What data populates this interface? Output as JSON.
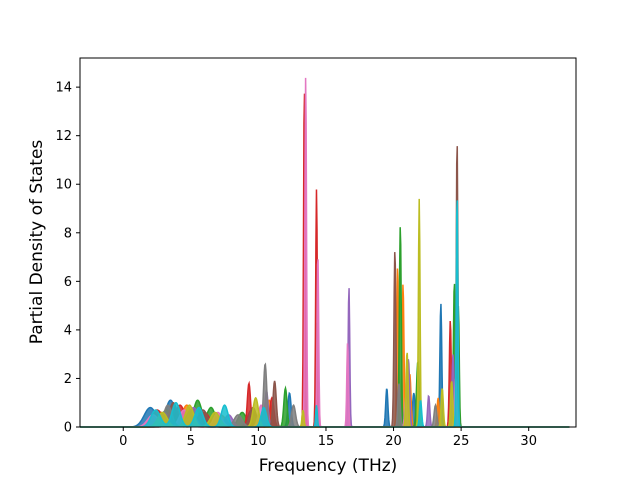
{
  "chart_data": {
    "type": "area",
    "title": "",
    "xlabel": "Frequency (THz)",
    "ylabel": "Partial Density of States",
    "xlim": [
      -3.2,
      33.5
    ],
    "ylim": [
      0,
      15.2
    ],
    "xticks": [
      0,
      5,
      10,
      15,
      20,
      25,
      30
    ],
    "yticks": [
      0,
      2,
      4,
      6,
      8,
      10,
      12,
      14
    ],
    "grid": false,
    "legend": "none",
    "x_range_plotted": [
      -3.2,
      33.0
    ],
    "series": [
      {
        "color": "#1f77b4",
        "peaks": [
          [
            2.0,
            0.8,
            0.45
          ],
          [
            3.5,
            1.1,
            0.35
          ],
          [
            5.8,
            0.6,
            0.4
          ],
          [
            9.5,
            0.7,
            0.3
          ],
          [
            12.3,
            1.4,
            0.12
          ],
          [
            13.4,
            1.5,
            0.08
          ],
          [
            19.5,
            1.6,
            0.08
          ],
          [
            21.5,
            1.4,
            0.1
          ],
          [
            23.5,
            5.1,
            0.07
          ],
          [
            24.6,
            3.2,
            0.08
          ]
        ]
      },
      {
        "color": "#ff7f0e",
        "peaks": [
          [
            2.8,
            0.6,
            0.4
          ],
          [
            4.7,
            0.9,
            0.35
          ],
          [
            7.2,
            0.5,
            0.4
          ],
          [
            10.8,
            1.1,
            0.2
          ],
          [
            13.5,
            0.8,
            0.07
          ],
          [
            20.3,
            6.6,
            0.07
          ],
          [
            20.7,
            5.9,
            0.07
          ],
          [
            21.2,
            2.2,
            0.09
          ],
          [
            23.3,
            1.2,
            0.08
          ]
        ]
      },
      {
        "color": "#2ca02c",
        "peaks": [
          [
            3.2,
            0.7,
            0.4
          ],
          [
            5.5,
            1.1,
            0.3
          ],
          [
            6.5,
            0.8,
            0.3
          ],
          [
            8.8,
            0.6,
            0.3
          ],
          [
            12.0,
            1.6,
            0.12
          ],
          [
            14.3,
            4.3,
            0.06
          ],
          [
            20.5,
            8.3,
            0.07
          ],
          [
            21.8,
            2.7,
            0.1
          ],
          [
            24.5,
            6.0,
            0.07
          ],
          [
            24.8,
            5.0,
            0.06
          ]
        ]
      },
      {
        "color": "#d62728",
        "peaks": [
          [
            2.5,
            0.7,
            0.45
          ],
          [
            4.2,
            0.9,
            0.35
          ],
          [
            6.0,
            0.6,
            0.4
          ],
          [
            9.3,
            1.8,
            0.12
          ],
          [
            11.0,
            1.2,
            0.15
          ],
          [
            13.4,
            14.0,
            0.06
          ],
          [
            14.3,
            9.8,
            0.06
          ],
          [
            21.0,
            2.5,
            0.08
          ],
          [
            24.2,
            4.4,
            0.07
          ]
        ]
      },
      {
        "color": "#9467bd",
        "peaks": [
          [
            3.0,
            0.6,
            0.4
          ],
          [
            5.2,
            0.8,
            0.35
          ],
          [
            7.8,
            0.5,
            0.3
          ],
          [
            10.6,
            1.5,
            0.12
          ],
          [
            16.7,
            5.8,
            0.06
          ],
          [
            21.1,
            2.8,
            0.09
          ],
          [
            22.6,
            1.3,
            0.08
          ],
          [
            24.4,
            3.0,
            0.08
          ]
        ]
      },
      {
        "color": "#8c564b",
        "peaks": [
          [
            3.7,
            1.0,
            0.3
          ],
          [
            5.9,
            0.7,
            0.35
          ],
          [
            9.6,
            0.8,
            0.25
          ],
          [
            11.2,
            1.9,
            0.12
          ],
          [
            20.1,
            7.3,
            0.07
          ],
          [
            24.7,
            11.9,
            0.06
          ]
        ]
      },
      {
        "color": "#e377c2",
        "peaks": [
          [
            2.2,
            0.5,
            0.4
          ],
          [
            4.5,
            0.7,
            0.35
          ],
          [
            7.0,
            0.6,
            0.3
          ],
          [
            10.2,
            0.9,
            0.2
          ],
          [
            13.5,
            14.5,
            0.06
          ],
          [
            14.4,
            7.2,
            0.06
          ],
          [
            16.6,
            3.5,
            0.06
          ],
          [
            20.9,
            1.2,
            0.08
          ],
          [
            24.6,
            2.0,
            0.08
          ]
        ]
      },
      {
        "color": "#7f7f7f",
        "peaks": [
          [
            3.3,
            0.9,
            0.3
          ],
          [
            5.0,
            0.7,
            0.35
          ],
          [
            8.5,
            0.5,
            0.3
          ],
          [
            10.5,
            2.6,
            0.12
          ],
          [
            12.6,
            0.9,
            0.15
          ],
          [
            20.4,
            1.8,
            0.08
          ],
          [
            23.1,
            0.9,
            0.1
          ]
        ]
      },
      {
        "color": "#bcbd22",
        "peaks": [
          [
            2.9,
            0.6,
            0.35
          ],
          [
            4.9,
            0.9,
            0.3
          ],
          [
            6.8,
            0.6,
            0.35
          ],
          [
            9.8,
            1.2,
            0.2
          ],
          [
            13.3,
            0.7,
            0.07
          ],
          [
            21.0,
            3.1,
            0.08
          ],
          [
            21.9,
            9.4,
            0.06
          ],
          [
            23.6,
            1.6,
            0.08
          ],
          [
            24.3,
            1.9,
            0.08
          ]
        ]
      },
      {
        "color": "#17becf",
        "peaks": [
          [
            2.4,
            0.7,
            0.35
          ],
          [
            3.9,
            1.0,
            0.3
          ],
          [
            5.6,
            0.8,
            0.3
          ],
          [
            7.5,
            0.9,
            0.25
          ],
          [
            10.4,
            0.8,
            0.2
          ],
          [
            14.3,
            0.9,
            0.06
          ],
          [
            22.0,
            1.1,
            0.08
          ],
          [
            24.7,
            9.6,
            0.06
          ]
        ]
      }
    ]
  }
}
